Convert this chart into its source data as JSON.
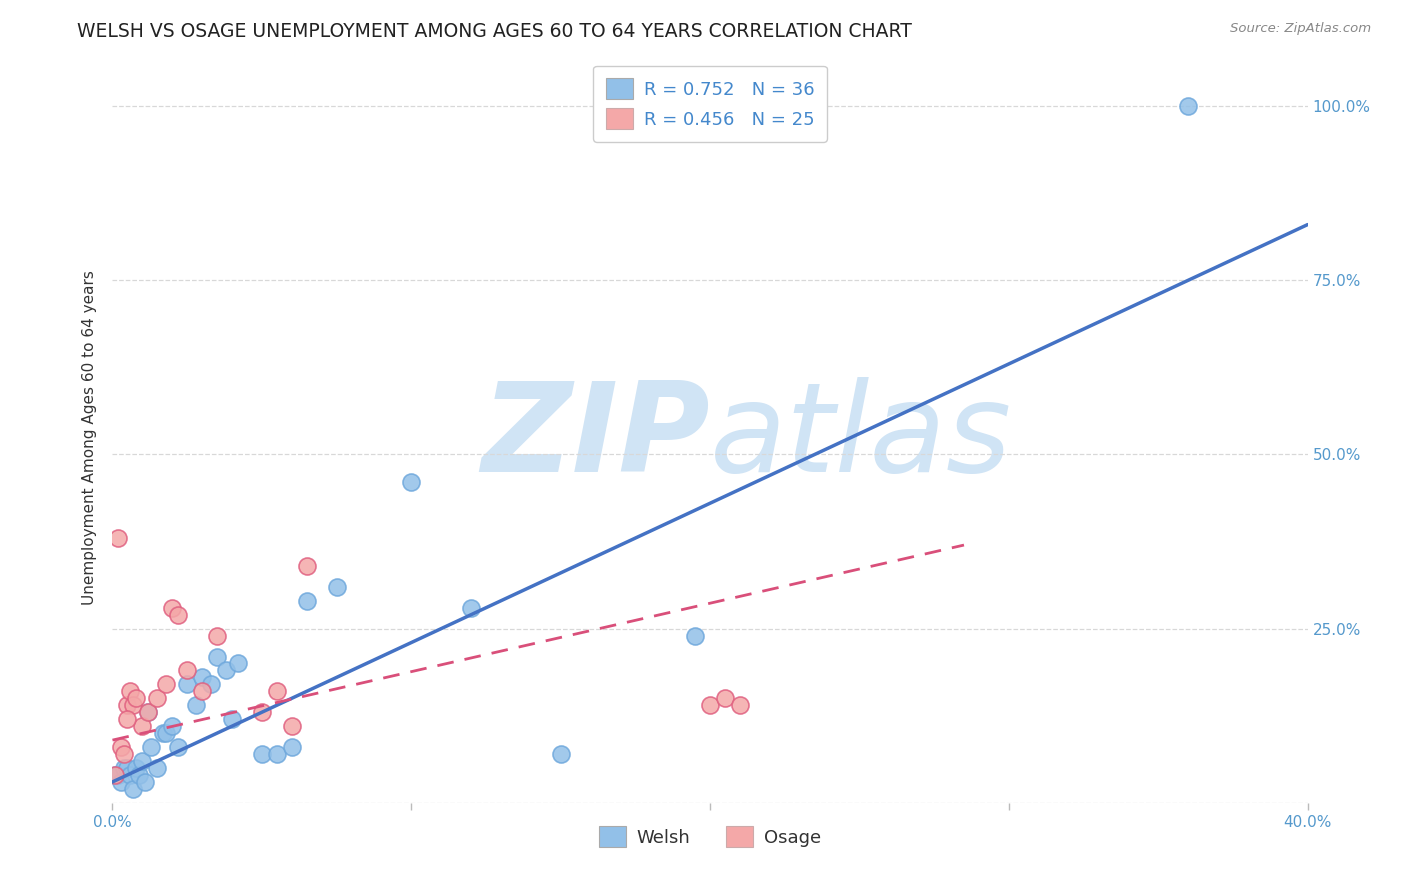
{
  "title": "WELSH VS OSAGE UNEMPLOYMENT AMONG AGES 60 TO 64 YEARS CORRELATION CHART",
  "source": "Source: ZipAtlas.com",
  "ylabel": "Unemployment Among Ages 60 to 64 years",
  "xlim": [
    0.0,
    0.4
  ],
  "ylim": [
    0.0,
    1.05
  ],
  "x_ticks": [
    0.0,
    0.1,
    0.2,
    0.3,
    0.4
  ],
  "x_tick_labels": [
    "0.0%",
    "",
    "",
    "",
    "40.0%"
  ],
  "y_ticks": [
    0.0,
    0.25,
    0.5,
    0.75,
    1.0
  ],
  "y_tick_labels": [
    "",
    "25.0%",
    "50.0%",
    "75.0%",
    "100.0%"
  ],
  "welsh_R": "0.752",
  "welsh_N": "36",
  "osage_R": "0.456",
  "osage_N": "25",
  "welsh_color": "#92c0e8",
  "osage_color": "#f4a8a8",
  "welsh_scatter_edge": "#6fa8dc",
  "osage_scatter_edge": "#e06080",
  "welsh_line_color": "#4472c4",
  "osage_line_color": "#d94f7a",
  "background_color": "#ffffff",
  "watermark_zip": "ZIP",
  "watermark_atlas": "atlas",
  "watermark_color": "#d0e4f5",
  "title_fontsize": 13.5,
  "axis_label_fontsize": 11,
  "tick_fontsize": 11,
  "legend_fontsize": 13,
  "welsh_x": [
    0.001,
    0.002,
    0.003,
    0.004,
    0.005,
    0.006,
    0.007,
    0.008,
    0.009,
    0.01,
    0.011,
    0.012,
    0.013,
    0.015,
    0.017,
    0.018,
    0.02,
    0.022,
    0.025,
    0.028,
    0.03,
    0.033,
    0.035,
    0.038,
    0.04,
    0.042,
    0.05,
    0.055,
    0.06,
    0.065,
    0.075,
    0.1,
    0.12,
    0.15,
    0.195,
    0.36
  ],
  "welsh_y": [
    0.04,
    0.04,
    0.03,
    0.05,
    0.05,
    0.04,
    0.02,
    0.05,
    0.04,
    0.06,
    0.03,
    0.13,
    0.08,
    0.05,
    0.1,
    0.1,
    0.11,
    0.08,
    0.17,
    0.14,
    0.18,
    0.17,
    0.21,
    0.19,
    0.12,
    0.2,
    0.07,
    0.07,
    0.08,
    0.29,
    0.31,
    0.46,
    0.28,
    0.07,
    0.24,
    1.0
  ],
  "osage_x": [
    0.001,
    0.002,
    0.003,
    0.004,
    0.005,
    0.006,
    0.007,
    0.008,
    0.01,
    0.012,
    0.015,
    0.018,
    0.02,
    0.022,
    0.025,
    0.03,
    0.035,
    0.05,
    0.055,
    0.06,
    0.065,
    0.2,
    0.205,
    0.21,
    0.005
  ],
  "osage_y": [
    0.04,
    0.38,
    0.08,
    0.07,
    0.14,
    0.16,
    0.14,
    0.15,
    0.11,
    0.13,
    0.15,
    0.17,
    0.28,
    0.27,
    0.19,
    0.16,
    0.24,
    0.13,
    0.16,
    0.11,
    0.34,
    0.14,
    0.15,
    0.14,
    0.12
  ],
  "welsh_trend_x": [
    0.0,
    0.4
  ],
  "welsh_trend_y": [
    0.03,
    0.83
  ],
  "osage_trend_x": [
    0.0,
    0.285
  ],
  "osage_trend_y": [
    0.09,
    0.37
  ],
  "grid_color": "#d8d8d8",
  "grid_linestyle": "--"
}
